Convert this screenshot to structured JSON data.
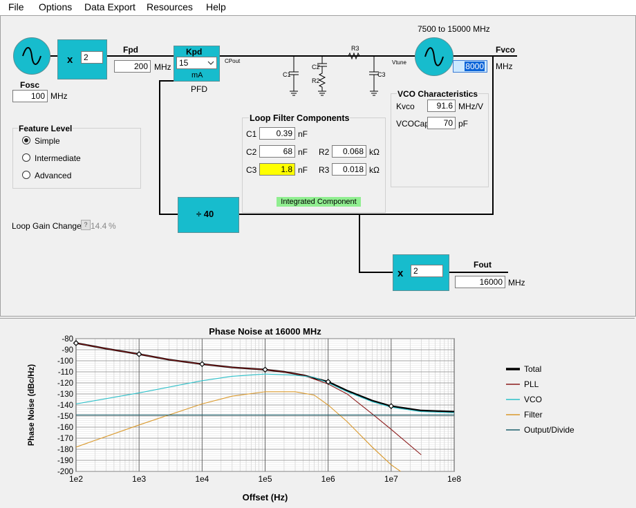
{
  "menu": [
    "File",
    "Options",
    "Data Export",
    "Resources",
    "Help"
  ],
  "osc": {
    "label": "Fosc",
    "value": "100",
    "unit": "MHz"
  },
  "ref_mult": {
    "symbol": "x",
    "value": "2"
  },
  "fpd": {
    "label": "Fpd",
    "value": "200",
    "unit": "MHz"
  },
  "kpd": {
    "label": "Kpd",
    "value": "15",
    "unit": "mA",
    "caption": "PFD"
  },
  "cpout": "CPout",
  "vtune": "Vtune",
  "components": {
    "r3": "R3",
    "c1": "C1",
    "c2": "C2",
    "r2": "R2",
    "c3": "C3"
  },
  "vco": {
    "range": "7500 to 15000 MHz",
    "label": "Fvco",
    "value": "8000",
    "unit": "MHz"
  },
  "vco_char": {
    "title": "VCO Characteristics",
    "kvco_label": "Kvco",
    "kvco_value": "91.6",
    "kvco_unit": "MHz/V",
    "vcocap_label": "VCOCap",
    "vcocap_value": "70",
    "vcocap_unit": "pF"
  },
  "feature": {
    "title": "Feature Level",
    "options": [
      "Simple",
      "Intermediate",
      "Advanced"
    ],
    "selected": 0
  },
  "loop_filter": {
    "title": "Loop Filter Components",
    "c1_label": "C1",
    "c1_value": "0.39",
    "c1_unit": "nF",
    "c2_label": "C2",
    "c2_value": "68",
    "c2_unit": "nF",
    "c3_label": "C3",
    "c3_value": "1.8",
    "c3_unit": "nF",
    "r2_label": "R2",
    "r2_value": "0.068",
    "r2_unit": "kΩ",
    "r3_label": "R3",
    "r3_value": "0.018",
    "r3_unit": "kΩ",
    "integrated": "Integrated Component"
  },
  "divider": {
    "label": "÷ 40"
  },
  "loop_gain": {
    "label": "Loop Gain Change",
    "help": "?",
    "value": "14.4",
    "unit": "%"
  },
  "out_mult": {
    "symbol": "x",
    "value": "2"
  },
  "fout": {
    "label": "Fout",
    "value": "16000",
    "unit": "MHz"
  },
  "colors": {
    "accent": "#17bccd",
    "highlight": "#ffff00",
    "integrated": "#90ee90"
  },
  "chart_data": {
    "type": "line",
    "title": "Phase Noise at 16000 MHz",
    "xlabel": "Offset (Hz)",
    "ylabel": "Phase Noise (dBc/Hz)",
    "x_scale": "log",
    "xlim": [
      100,
      100000000
    ],
    "ylim": [
      -200,
      -80
    ],
    "x_ticks": [
      "1e2",
      "1e3",
      "1e4",
      "1e5",
      "1e6",
      "1e7",
      "1e8"
    ],
    "y_ticks": [
      -80,
      -90,
      -100,
      -110,
      -120,
      -130,
      -140,
      -150,
      -160,
      -170,
      -180,
      -190,
      -200
    ],
    "grid": true,
    "legend": "right",
    "series": [
      {
        "name": "Total",
        "color": "#000000",
        "x": [
          100,
          300,
          1000,
          3000,
          10000,
          30000,
          100000,
          200000,
          400000,
          1000000,
          2000000,
          5000000,
          10000000,
          30000000,
          100000000
        ],
        "y": [
          -84,
          -89,
          -94,
          -99,
          -103,
          -106,
          -108,
          -110,
          -113,
          -119,
          -127,
          -136,
          -141,
          -145,
          -146
        ]
      },
      {
        "name": "PLL",
        "color": "#8b1a1a",
        "x": [
          100,
          300,
          1000,
          3000,
          10000,
          30000,
          100000,
          200000,
          400000,
          1000000,
          2000000,
          5000000,
          10000000,
          30000000
        ],
        "y": [
          -84,
          -89,
          -94,
          -99,
          -103,
          -106,
          -108,
          -110,
          -113,
          -121,
          -130,
          -148,
          -162,
          -185
        ]
      },
      {
        "name": "VCO",
        "color": "#2bbfc8",
        "x": [
          100,
          1000,
          10000,
          30000,
          100000,
          300000,
          600000,
          1000000,
          2000000,
          5000000,
          10000000,
          30000000,
          100000000
        ],
        "y": [
          -139,
          -129,
          -118,
          -114,
          -112,
          -113,
          -115,
          -120,
          -128,
          -137,
          -142,
          -146,
          -147
        ]
      },
      {
        "name": "Filter",
        "color": "#d9982a",
        "x": [
          100,
          1000,
          10000,
          30000,
          100000,
          300000,
          600000,
          1000000,
          2000000,
          5000000,
          10000000,
          25000000
        ],
        "y": [
          -178,
          -158,
          -139,
          -132,
          -128,
          -128,
          -131,
          -140,
          -155,
          -178,
          -194,
          -210
        ]
      },
      {
        "name": "Output/Divide",
        "color": "#1b5f6b",
        "x": [
          100,
          100000000
        ],
        "y": [
          -149,
          -149
        ]
      }
    ],
    "markers": {
      "x": [
        100,
        1000,
        10000,
        100000,
        1000000,
        10000000
      ],
      "y": [
        -84,
        -94,
        -103,
        -108,
        -119,
        -141
      ]
    }
  }
}
